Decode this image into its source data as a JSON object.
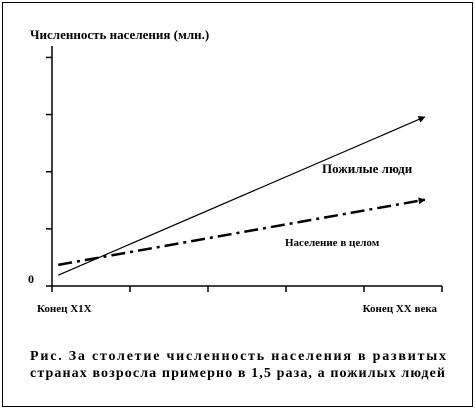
{
  "chart_data": {
    "type": "line",
    "title": "Численность населения (млн.)",
    "xlim": [
      0,
      5
    ],
    "ylim": [
      0,
      4.2
    ],
    "xticks": [
      {
        "value": 0,
        "label": "Конец Х1Х"
      },
      {
        "value": 1
      },
      {
        "value": 2
      },
      {
        "value": 3
      },
      {
        "value": 4
      },
      {
        "value": 5,
        "label": "Конец ХХ века"
      }
    ],
    "yticks": [
      {
        "value": 0,
        "label": "0"
      },
      {
        "value": 1
      },
      {
        "value": 2
      },
      {
        "value": 3
      },
      {
        "value": 4
      }
    ],
    "series": [
      {
        "name": "Пожилые люди",
        "color": "#000000",
        "dash": "solid",
        "x": [
          0.08,
          4.78
        ],
        "values": [
          0.19,
          2.96
        ]
      },
      {
        "name": "Население в целом",
        "color": "#000000",
        "dash": "dashdot",
        "x": [
          0.08,
          4.78
        ],
        "values": [
          0.37,
          1.51
        ]
      }
    ],
    "caption": [
      "Рис. За столетие численность населения в развитых",
      "странах возросла примерно в 1,5 раза, а пожилых людей"
    ]
  }
}
